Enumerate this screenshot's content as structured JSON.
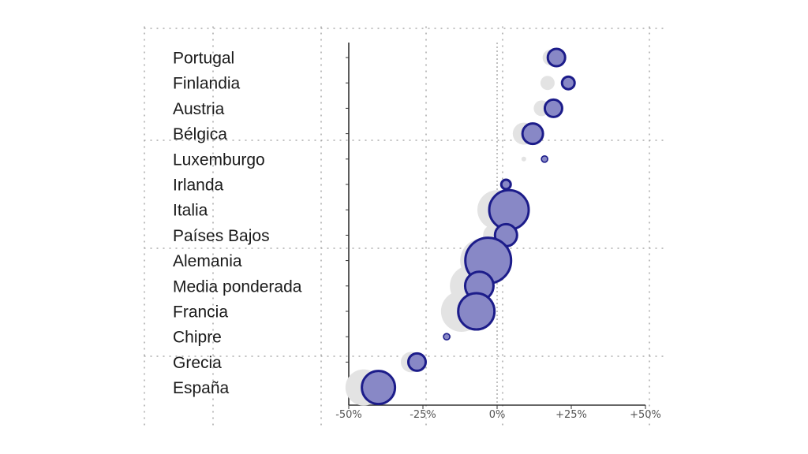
{
  "chart_data": {
    "type": "scatter",
    "categories": [
      "Portugal",
      "Finlandia",
      "Austria",
      "Bélgica",
      "Luxemburgo",
      "Irlanda",
      "Italia",
      "Países Bajos",
      "Alemania",
      "Media ponderada",
      "Francia",
      "Chipre",
      "Grecia",
      "España"
    ],
    "series": [
      {
        "color": "#e3e3e3",
        "x": [
          18,
          17,
          15,
          9,
          9,
          3,
          0,
          -1,
          -5,
          -9,
          -12,
          -16,
          -29,
          -45
        ],
        "size": [
          10,
          9,
          10,
          14,
          3,
          3,
          25,
          14,
          28,
          26,
          26,
          2,
          13,
          23
        ]
      },
      {
        "color": "#8888c6",
        "edge_color": "#1c1c8a",
        "x": [
          20,
          24,
          19,
          12,
          16,
          3,
          4,
          3,
          -3,
          -6,
          -7,
          -17,
          -27,
          -40
        ],
        "size": [
          11,
          8,
          11,
          13,
          4,
          6,
          25,
          14,
          29,
          18,
          23,
          4,
          11,
          21
        ]
      }
    ],
    "xticks": [
      "-50%",
      "-25%",
      "0%",
      "+25%",
      "+50%"
    ],
    "xtick_values": [
      -50,
      -25,
      0,
      25,
      50
    ],
    "xlim": [
      -52,
      52
    ],
    "grid": "dotted"
  }
}
